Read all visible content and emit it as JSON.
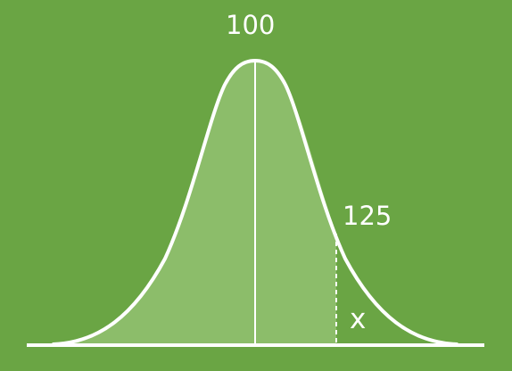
{
  "diagram": {
    "mean_label": "100",
    "value_label": "125",
    "x_label": "x",
    "shaded_from": "left tail",
    "shaded_to": "125"
  },
  "colors": {
    "background": "#6aa544",
    "shaded_area": "#8cbd6a",
    "curve": "#ffffff",
    "text": "#ffffff"
  }
}
